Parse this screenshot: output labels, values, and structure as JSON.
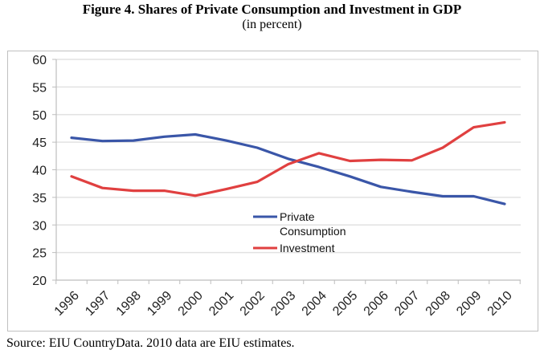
{
  "figure": {
    "title": "Figure 4. Shares of Private Consumption and Investment in GDP",
    "subtitle": "(in percent)",
    "source": "Source: EIU CountryData. 2010 data are EIU estimates."
  },
  "chart_data": {
    "type": "line",
    "title": "Figure 4. Shares of Private Consumption and Investment in GDP",
    "subtitle": "(in percent)",
    "xlabel": "",
    "ylabel": "",
    "x": [
      "1996",
      "1997",
      "1998",
      "1999",
      "2000",
      "2001",
      "2002",
      "2003",
      "2004",
      "2005",
      "2006",
      "2007",
      "2008",
      "2009",
      "2010"
    ],
    "ylim": [
      20,
      60
    ],
    "yticks": [
      20,
      25,
      30,
      35,
      40,
      45,
      50,
      55,
      60
    ],
    "grid": true,
    "legend_position": "center",
    "series": [
      {
        "name": "Private Consumption",
        "legend_lines": [
          "Private",
          "Consumption"
        ],
        "color": "#3a56a8",
        "values": [
          45.8,
          45.2,
          45.3,
          46.0,
          46.4,
          45.3,
          44.0,
          42.0,
          40.5,
          38.8,
          36.9,
          36.0,
          35.2,
          35.2,
          33.8
        ]
      },
      {
        "name": "Investment",
        "legend_lines": [
          "Investment"
        ],
        "color": "#e04040",
        "values": [
          38.8,
          36.7,
          36.2,
          36.2,
          35.3,
          36.5,
          37.8,
          41.0,
          43.0,
          41.6,
          41.8,
          41.7,
          44.0,
          47.7,
          48.6
        ]
      }
    ]
  }
}
